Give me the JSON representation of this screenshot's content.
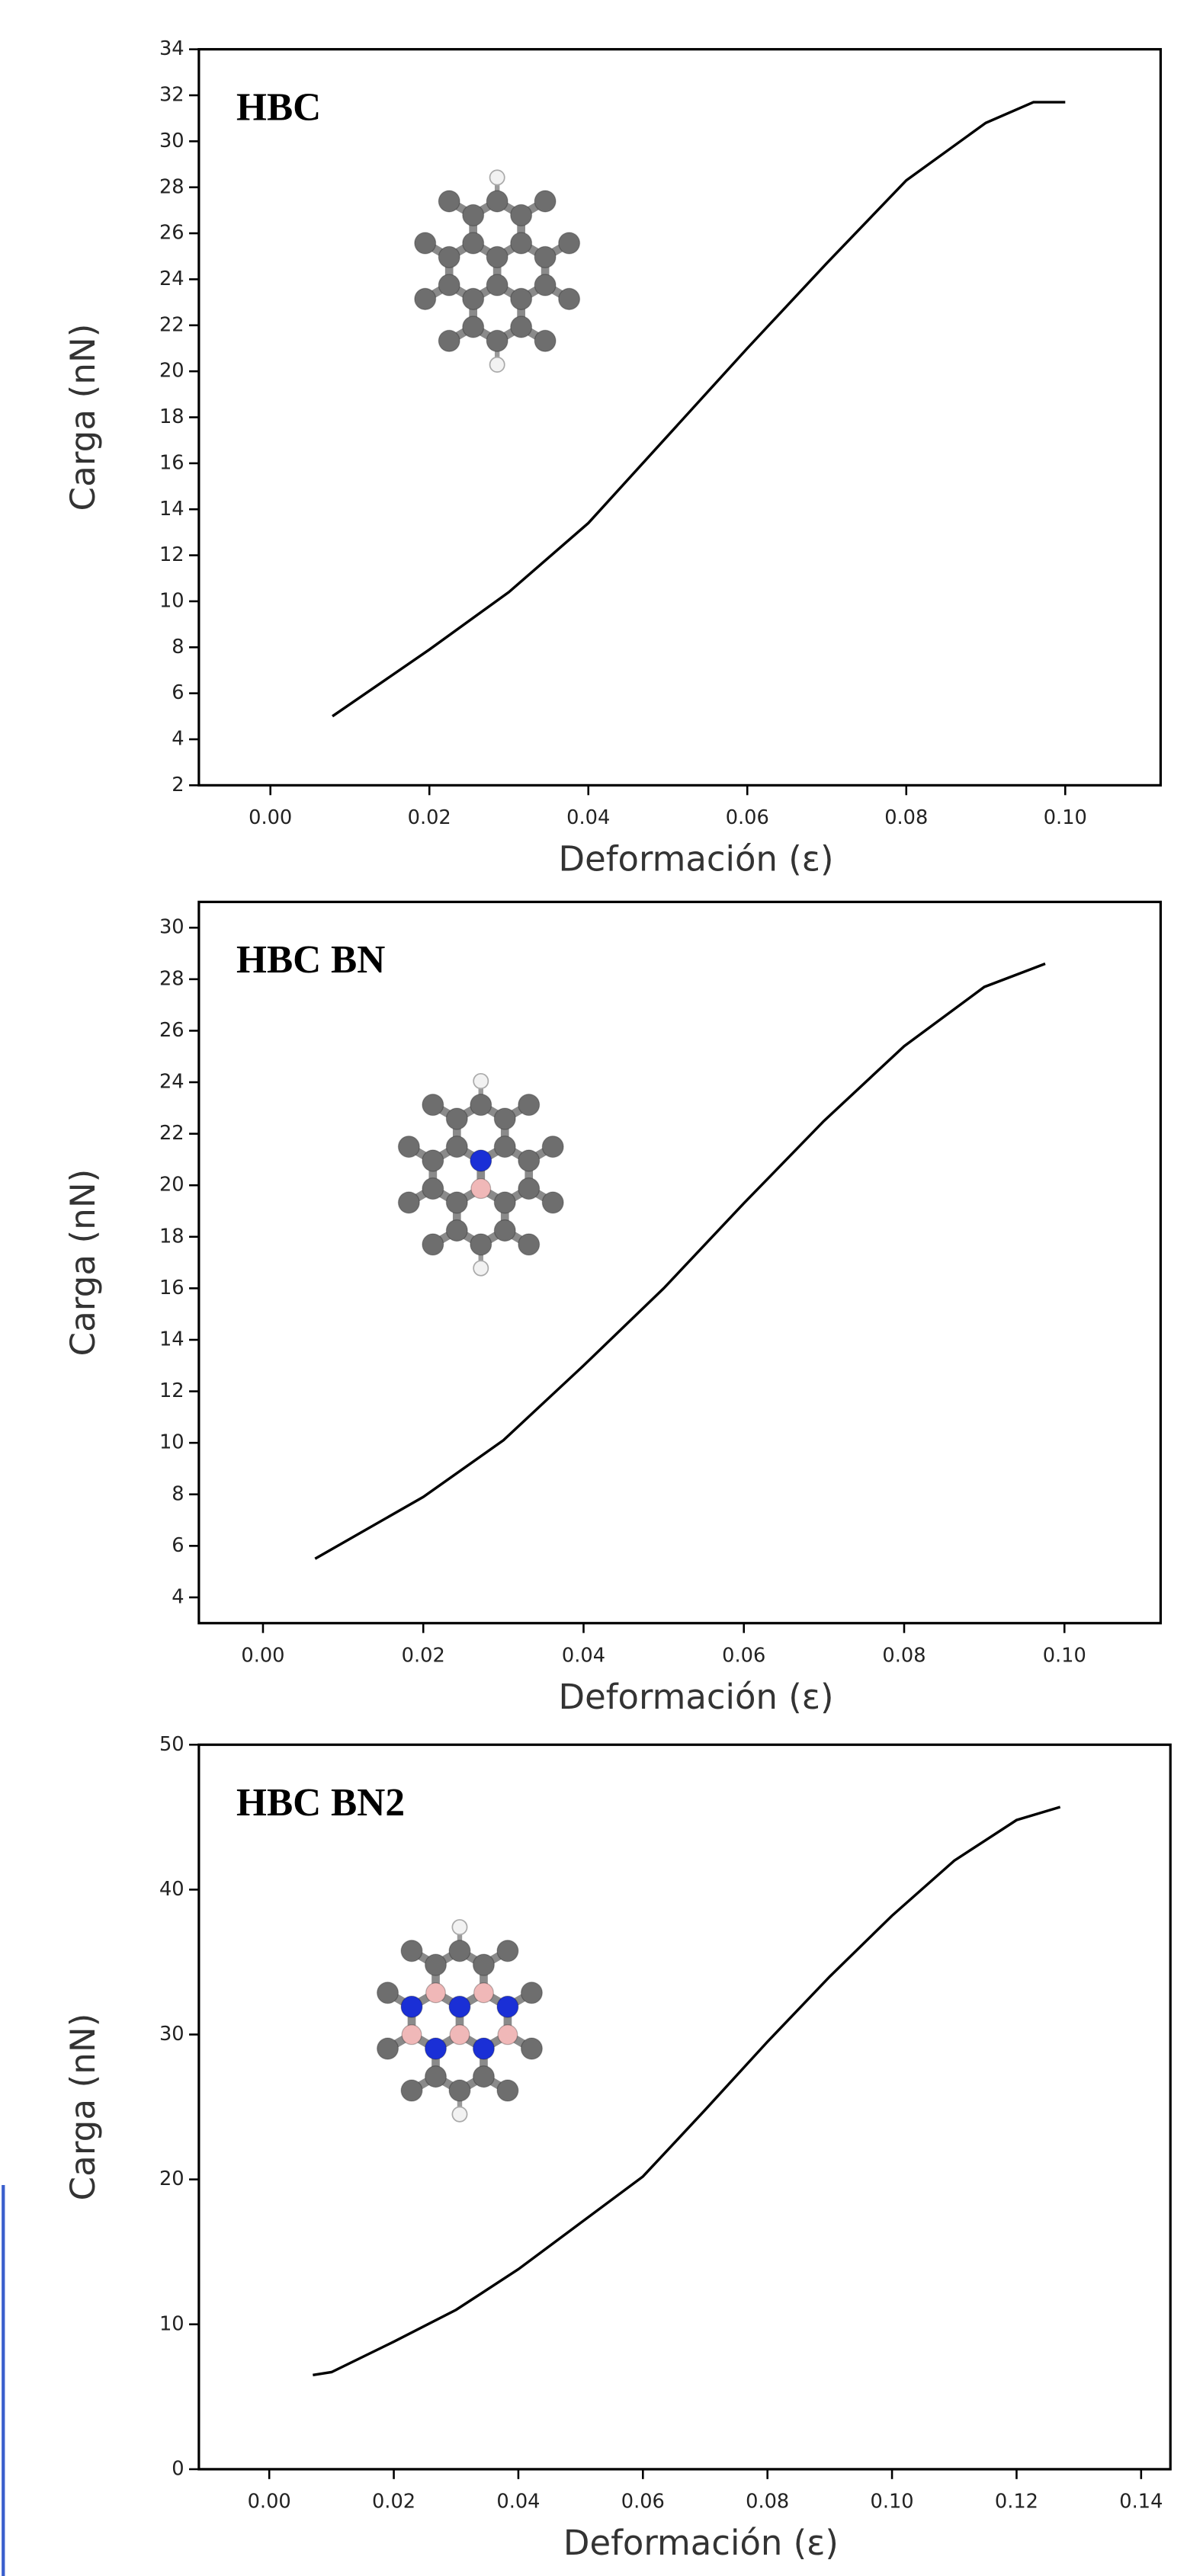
{
  "chart_data": [
    {
      "type": "line",
      "annotation": "HBC",
      "xlabel": "Deformación (ε)",
      "ylabel": "Carga (nN)",
      "xlim": [
        -0.009,
        0.112
      ],
      "ylim": [
        2,
        34
      ],
      "xticks": [
        {
          "value": 0,
          "label": "0.00"
        },
        {
          "value": 0.02,
          "label": "0.02"
        },
        {
          "value": 0.04,
          "label": "0.04"
        },
        {
          "value": 0.06,
          "label": "0.06"
        },
        {
          "value": 0.08,
          "label": "0.08"
        },
        {
          "value": 0.1,
          "label": "0.10"
        }
      ],
      "yticks": [
        2,
        4,
        6,
        8,
        10,
        12,
        14,
        16,
        18,
        20,
        22,
        24,
        26,
        28,
        30,
        32,
        34
      ],
      "x": [
        0.0078,
        0.02,
        0.03,
        0.04,
        0.05,
        0.06,
        0.07,
        0.08,
        0.09,
        0.096,
        0.1
      ],
      "series": [
        {
          "color": "#000000",
          "values": [
            5.0,
            7.9,
            10.4,
            13.4,
            17.2,
            21.0,
            24.7,
            28.3,
            30.8,
            31.7,
            31.7
          ]
        }
      ]
    },
    {
      "type": "line",
      "annotation": "HBC BN",
      "xlabel": "Deformación (ε)",
      "ylabel": "Carga (nN)",
      "xlim": [
        -0.008,
        0.112
      ],
      "ylim": [
        3,
        31
      ],
      "xticks": [
        {
          "value": 0,
          "label": "0.00"
        },
        {
          "value": 0.02,
          "label": "0.02"
        },
        {
          "value": 0.04,
          "label": "0.04"
        },
        {
          "value": 0.06,
          "label": "0.06"
        },
        {
          "value": 0.08,
          "label": "0.08"
        },
        {
          "value": 0.1,
          "label": "0.10"
        }
      ],
      "yticks": [
        4,
        6,
        8,
        10,
        12,
        14,
        16,
        18,
        20,
        22,
        24,
        26,
        28,
        30
      ],
      "x": [
        0.0065,
        0.02,
        0.03,
        0.04,
        0.05,
        0.06,
        0.07,
        0.08,
        0.09,
        0.0976
      ],
      "series": [
        {
          "color": "#000000",
          "values": [
            5.5,
            7.9,
            10.1,
            13.0,
            16.0,
            19.3,
            22.5,
            25.4,
            27.7,
            28.6
          ]
        }
      ]
    },
    {
      "type": "line",
      "annotation": "HBC BN2",
      "xlabel": "Deformación (ε)",
      "ylabel": "Carga (nN)",
      "xlim": [
        -0.0113,
        0.1447
      ],
      "ylim": [
        0,
        50
      ],
      "xticks": [
        {
          "value": 0,
          "label": "0.00"
        },
        {
          "value": 0.02,
          "label": "0.02"
        },
        {
          "value": 0.04,
          "label": "0.04"
        },
        {
          "value": 0.06,
          "label": "0.06"
        },
        {
          "value": 0.08,
          "label": "0.08"
        },
        {
          "value": 0.1,
          "label": "0.10"
        },
        {
          "value": 0.12,
          "label": "0.12"
        },
        {
          "value": 0.14,
          "label": "0.14"
        }
      ],
      "yticks": [
        0,
        10,
        20,
        30,
        40,
        50
      ],
      "x": [
        0.007,
        0.01,
        0.02,
        0.03,
        0.04,
        0.05,
        0.06,
        0.07,
        0.08,
        0.09,
        0.1,
        0.11,
        0.12,
        0.127
      ],
      "series": [
        {
          "color": "#000000",
          "values": [
            6.5,
            6.7,
            8.8,
            11.0,
            13.8,
            17.0,
            20.2,
            24.8,
            29.5,
            34.0,
            38.2,
            42.0,
            44.8,
            45.7
          ]
        }
      ]
    }
  ]
}
